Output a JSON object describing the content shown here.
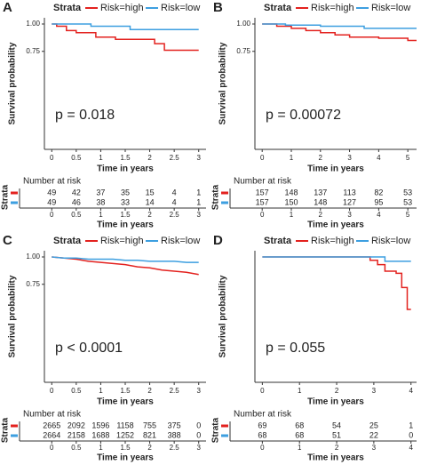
{
  "chart_data": [
    {
      "type": "line",
      "panel_label": "A",
      "legend_title": "Strata",
      "ylabel": "Survival probability",
      "xlabel": "Time in years",
      "annotation": "p = 0.018",
      "xlim": [
        -0.15,
        3.15
      ],
      "xticks": [
        0,
        0.5,
        1,
        1.5,
        2,
        2.5,
        3
      ],
      "ylim": [
        0,
        1
      ],
      "yticks": [
        {
          "value": 0.75,
          "label": "0.75"
        },
        {
          "value": 1,
          "label": "1.00"
        }
      ],
      "series": [
        {
          "name": "Risk=high",
          "color": "#e3221f",
          "x": [
            0,
            0.1,
            0.1,
            0.3,
            0.3,
            0.5,
            0.5,
            0.9,
            0.9,
            1.3,
            1.3,
            2.1,
            2.1,
            2.3,
            2.3,
            3
          ],
          "values": [
            1,
            1,
            0.98,
            0.98,
            0.94,
            0.94,
            0.92,
            0.92,
            0.88,
            0.88,
            0.86,
            0.86,
            0.82,
            0.82,
            0.76,
            0.76
          ]
        },
        {
          "name": "Risk=low",
          "color": "#3d9fe0",
          "x": [
            0,
            0.8,
            0.8,
            1.6,
            1.6,
            3
          ],
          "values": [
            1,
            1,
            0.98,
            0.98,
            0.95,
            0.95
          ]
        }
      ],
      "risk_table": {
        "title": "Number at risk",
        "ylabel": "Strata",
        "xlabel": "Time in years",
        "rows": [
          [
            49,
            42,
            37,
            35,
            15,
            4,
            1
          ],
          [
            49,
            46,
            38,
            33,
            14,
            4,
            1
          ]
        ]
      }
    },
    {
      "type": "line",
      "panel_label": "B",
      "legend_title": "Strata",
      "ylabel": "Survival probability",
      "xlabel": "Time in years",
      "annotation": "p = 0.00072",
      "xlim": [
        -0.25,
        5.3
      ],
      "xticks": [
        0,
        1,
        2,
        3,
        4,
        5
      ],
      "ylim": [
        0,
        1
      ],
      "yticks": [
        {
          "value": 0.75,
          "label": "0.75"
        },
        {
          "value": 1,
          "label": "1.00"
        }
      ],
      "series": [
        {
          "name": "Risk=high",
          "color": "#e3221f",
          "x": [
            0,
            0.5,
            0.5,
            1,
            1,
            1.5,
            1.5,
            2,
            2,
            2.5,
            2.5,
            3,
            3,
            4,
            4,
            5,
            5,
            5.3
          ],
          "values": [
            1,
            1,
            0.98,
            0.98,
            0.96,
            0.96,
            0.94,
            0.94,
            0.92,
            0.92,
            0.9,
            0.9,
            0.88,
            0.88,
            0.87,
            0.87,
            0.85,
            0.85
          ]
        },
        {
          "name": "Risk=low",
          "color": "#3d9fe0",
          "x": [
            0,
            0.8,
            0.8,
            2,
            2,
            3.5,
            3.5,
            5.3
          ],
          "values": [
            1,
            1,
            0.99,
            0.99,
            0.98,
            0.98,
            0.96,
            0.96
          ]
        }
      ],
      "risk_table": {
        "title": "Number at risk",
        "ylabel": "Strata",
        "xlabel": "Time in years",
        "rows": [
          [
            157,
            148,
            137,
            113,
            82,
            53
          ],
          [
            157,
            150,
            148,
            127,
            95,
            53
          ]
        ]
      }
    },
    {
      "type": "line",
      "panel_label": "C",
      "legend_title": "Strata",
      "ylabel": "Survival probability",
      "xlabel": "Time in years",
      "annotation": "p < 0.0001",
      "xlim": [
        -0.15,
        3.15
      ],
      "xticks": [
        0,
        0.5,
        1,
        1.5,
        2,
        2.5,
        3
      ],
      "ylim": [
        0,
        1
      ],
      "yticks": [
        {
          "value": 0.75,
          "label": "0.75"
        },
        {
          "value": 1,
          "label": "1.00"
        }
      ],
      "series": [
        {
          "name": "Risk=high",
          "color": "#e3221f",
          "x": [
            0,
            0.25,
            0.5,
            0.75,
            1,
            1.25,
            1.5,
            1.75,
            2,
            2.25,
            2.5,
            2.75,
            3
          ],
          "values": [
            1,
            0.99,
            0.98,
            0.96,
            0.95,
            0.94,
            0.93,
            0.91,
            0.9,
            0.88,
            0.87,
            0.86,
            0.84
          ]
        },
        {
          "name": "Risk=low",
          "color": "#3d9fe0",
          "x": [
            0,
            0.25,
            0.5,
            0.75,
            1,
            1.25,
            1.5,
            1.75,
            2,
            2.25,
            2.5,
            2.75,
            3
          ],
          "values": [
            1,
            0.99,
            0.99,
            0.98,
            0.98,
            0.98,
            0.97,
            0.97,
            0.96,
            0.96,
            0.96,
            0.95,
            0.95
          ]
        }
      ],
      "risk_table": {
        "title": "Number at risk",
        "ylabel": "Strata",
        "xlabel": "Time in years",
        "rows": [
          [
            2665,
            2092,
            1596,
            1158,
            755,
            375,
            0
          ],
          [
            2664,
            2158,
            1688,
            1252,
            821,
            388,
            0
          ]
        ]
      }
    },
    {
      "type": "line",
      "panel_label": "D",
      "legend_title": "Strata",
      "ylabel": "Survival probability",
      "xlabel": "Time in years",
      "annotation": "p = 0.055",
      "xlim": [
        -0.2,
        4.15
      ],
      "xticks": [
        0,
        1,
        2,
        3,
        4
      ],
      "ylim": [
        0,
        1
      ],
      "series": [
        {
          "name": "Risk=high",
          "color": "#e3221f",
          "x": [
            0,
            2.9,
            2.9,
            3.1,
            3.1,
            3.3,
            3.3,
            3.6,
            3.6,
            3.75,
            3.75,
            3.9,
            3.9,
            4
          ],
          "values": [
            1,
            1,
            0.97,
            0.97,
            0.93,
            0.93,
            0.87,
            0.87,
            0.85,
            0.85,
            0.72,
            0.72,
            0.52,
            0.52
          ]
        },
        {
          "name": "Risk=low",
          "color": "#3d9fe0",
          "x": [
            0,
            3.3,
            3.3,
            4
          ],
          "values": [
            1,
            1,
            0.96,
            0.96
          ]
        }
      ],
      "risk_table": {
        "title": "Number at risk",
        "ylabel": "Strata",
        "xlabel": "Time in years",
        "rows": [
          [
            69,
            68,
            54,
            25,
            1
          ],
          [
            68,
            68,
            51,
            22,
            0
          ]
        ]
      }
    }
  ]
}
